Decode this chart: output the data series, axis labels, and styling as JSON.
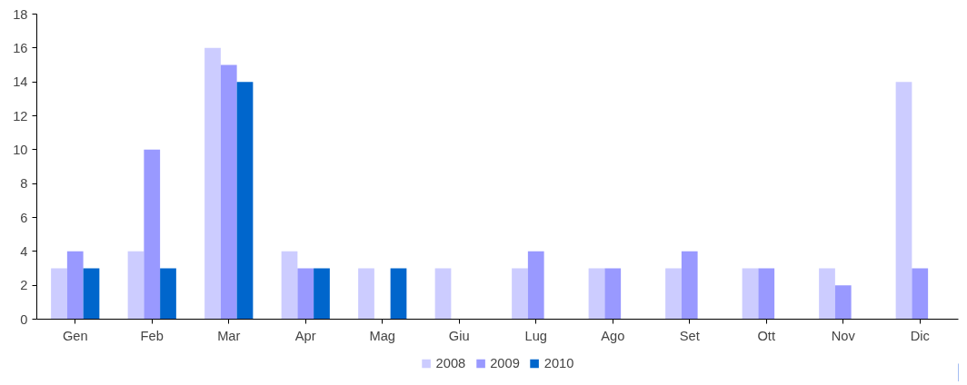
{
  "chart_data": {
    "type": "bar",
    "categories": [
      "Gen",
      "Feb",
      "Mar",
      "Apr",
      "Mag",
      "Giu",
      "Lug",
      "Ago",
      "Set",
      "Ott",
      "Nov",
      "Dic"
    ],
    "series": [
      {
        "name": "2008",
        "color": "#ccccff",
        "values": [
          3,
          4,
          16,
          4,
          3,
          3,
          3,
          3,
          3,
          3,
          3,
          14
        ]
      },
      {
        "name": "2009",
        "color": "#9999ff",
        "values": [
          4,
          10,
          15,
          3,
          null,
          null,
          4,
          3,
          4,
          3,
          2,
          3
        ]
      },
      {
        "name": "2010",
        "color": "#0066cc",
        "values": [
          3,
          3,
          14,
          3,
          3,
          null,
          null,
          null,
          null,
          null,
          null,
          null
        ]
      }
    ],
    "ylim": [
      0,
      18
    ],
    "yticks": [
      0,
      2,
      4,
      6,
      8,
      10,
      12,
      14,
      16,
      18
    ],
    "grid": false,
    "legend": "bottom"
  }
}
